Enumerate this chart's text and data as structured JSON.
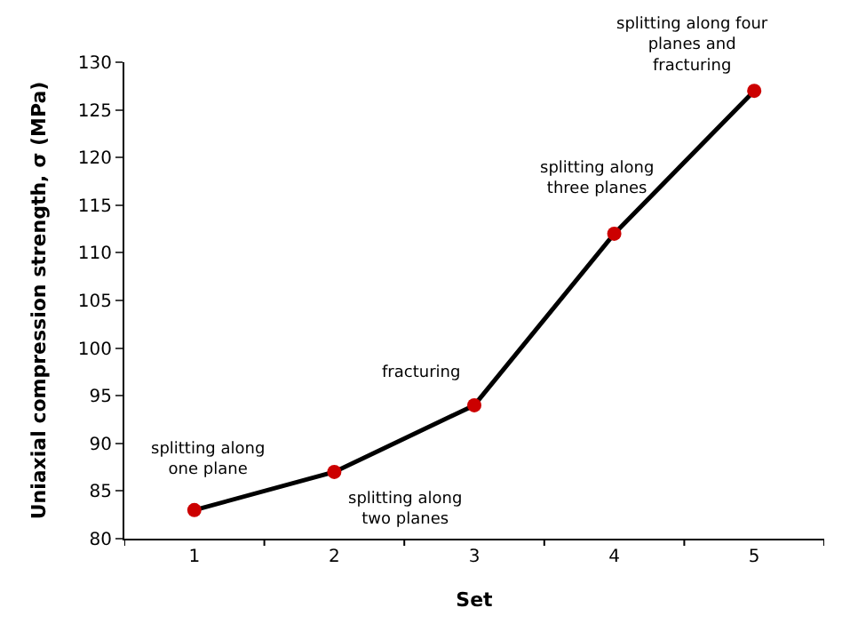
{
  "chart_data": {
    "type": "line",
    "xlabel": "Set",
    "ylabel": "Uniaxial compression strength, σ (MPa)",
    "categories": [
      "1",
      "2",
      "3",
      "4",
      "5"
    ],
    "series": [
      {
        "color": "#000000",
        "colors": [
          "#cc0000",
          "#cc0000",
          "#cc0000",
          "#cc0000",
          "#cc0000"
        ],
        "values": [
          83,
          87,
          94,
          112,
          127
        ]
      }
    ],
    "marker": "circle",
    "line_style": "solid",
    "ylim": [
      80,
      130
    ],
    "yticks": [
      80,
      85,
      90,
      95,
      100,
      105,
      110,
      115,
      120,
      125,
      130
    ],
    "annotations": [
      {
        "text": "splitting along\none plane",
        "x": "1",
        "y": 83
      },
      {
        "text": "splitting along\ntwo planes",
        "x": "2",
        "y": 87
      },
      {
        "text": "fracturing",
        "x": "3",
        "y": 94
      },
      {
        "text": "splitting along\nthree planes",
        "x": "4",
        "y": 112
      },
      {
        "text": "splitting along four\nplanes and\nfracturing",
        "x": "5",
        "y": 127
      }
    ]
  }
}
